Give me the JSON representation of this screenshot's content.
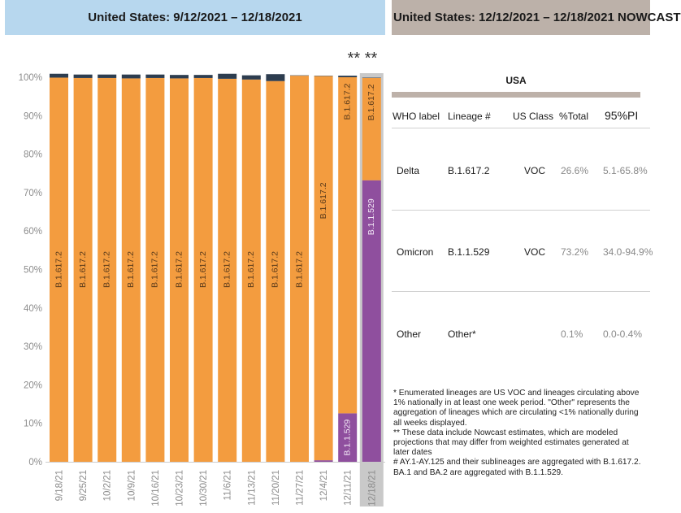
{
  "header": {
    "left_title": "United States: 9/12/2021 – 12/18/2021",
    "right_title": "United States: 12/12/2021 – 12/18/2021 NOWCAST"
  },
  "chart_data": {
    "type": "bar",
    "stacked": true,
    "categories": [
      "9/18/21",
      "9/25/21",
      "10/2/21",
      "10/9/21",
      "10/16/21",
      "10/23/21",
      "10/30/21",
      "11/6/21",
      "11/13/21",
      "11/20/21",
      "11/27/21",
      "12/4/21",
      "12/11/21",
      "12/18/21"
    ],
    "series": [
      {
        "name": "B.1.1.529",
        "color": "#8f4f9e",
        "values": [
          0,
          0,
          0,
          0,
          0,
          0,
          0,
          0,
          0,
          0,
          0,
          0.4,
          12.6,
          73.2
        ]
      },
      {
        "name": "B.1.617.2",
        "color": "#f39c3f",
        "values": [
          99.9,
          99.8,
          99.8,
          99.7,
          99.8,
          99.7,
          99.8,
          99.6,
          99.4,
          99.0,
          100.4,
          99.9,
          87.4,
          26.6
        ]
      },
      {
        "name": "Other",
        "color": "#2d3d4f",
        "values": [
          1.0,
          0.9,
          0.9,
          1.0,
          0.9,
          0.9,
          0.8,
          1.3,
          1.1,
          1.8,
          0.1,
          0.1,
          0.4,
          0.1
        ]
      }
    ],
    "bar_labels": [
      [
        "B.1.617.2"
      ],
      [
        "B.1.617.2"
      ],
      [
        "B.1.617.2"
      ],
      [
        "B.1.617.2"
      ],
      [
        "B.1.617.2"
      ],
      [
        "B.1.617.2"
      ],
      [
        "B.1.617.2"
      ],
      [
        "B.1.617.2"
      ],
      [
        "B.1.617.2"
      ],
      [
        "B.1.617.2"
      ],
      [
        "B.1.617.2"
      ],
      [
        "B.1.617.2"
      ],
      [
        "B.1.617.2",
        "B.1.1.529"
      ],
      [
        "B.1.617.2",
        "B.1.1.529"
      ]
    ],
    "y_ticks": [
      "0%",
      "10%",
      "20%",
      "30%",
      "40%",
      "50%",
      "60%",
      "70%",
      "80%",
      "90%",
      "100%"
    ],
    "ylim": [
      0,
      100
    ],
    "annotation": "** **",
    "highlighted_category": "12/18/21"
  },
  "table": {
    "title": "USA",
    "headers": [
      "WHO label",
      "Lineage #",
      "US Class",
      "%Total",
      "95%PI"
    ],
    "rows": [
      {
        "who": "Delta",
        "lineage": "B.1.617.2",
        "class": "VOC",
        "total": "26.6%",
        "pi": "5.1-65.8%"
      },
      {
        "who": "Omicron",
        "lineage": "B.1.1.529",
        "class": "VOC",
        "total": "73.2%",
        "pi": "34.0-94.9%"
      },
      {
        "who": "Other",
        "lineage": "Other*",
        "class": "",
        "total": "0.1%",
        "pi": "0.0-0.4%"
      }
    ]
  },
  "notes": [
    "*      Enumerated lineages are US VOC and lineages circulating above 1% nationally in at least one week period. \"Other\" represents the aggregation of lineages which are circulating <1% nationally during all weeks displayed.",
    "**     These data include Nowcast estimates, which are modeled projections that may differ from weighted estimates generated at later dates",
    "#      AY.1-AY.125 and their sublineages are aggregated with B.1.617.2. BA.1 and BA.2 are aggregated with B.1.1.529."
  ]
}
